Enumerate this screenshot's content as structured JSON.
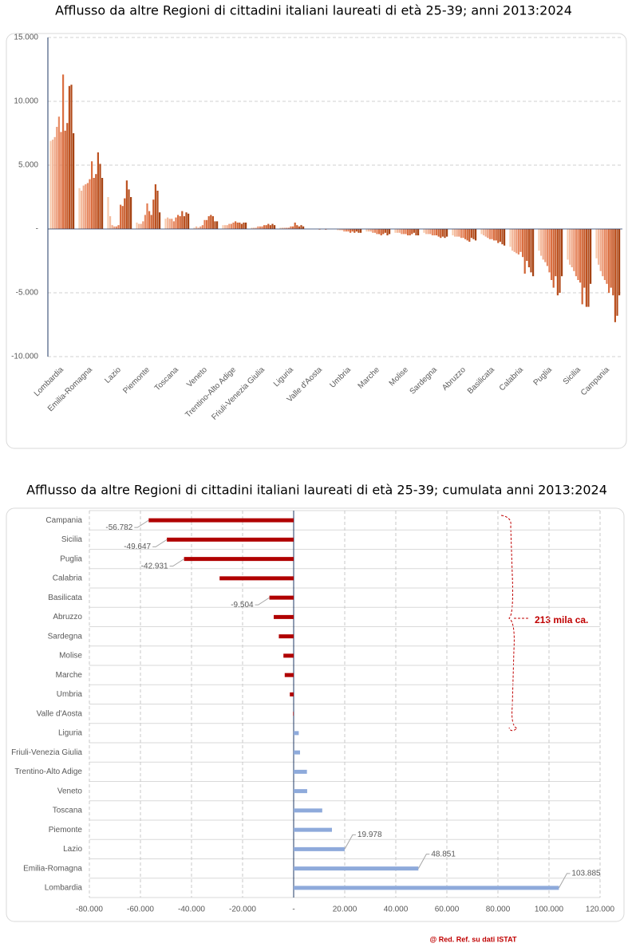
{
  "chart_data": [
    {
      "type": "bar",
      "title": "Afflusso da altre Regioni di cittadini italiani laureati di età 25-39; anni 2013:2024",
      "categories": [
        "Lombardia",
        "Emilia-Romagna",
        "Lazio",
        "Piemonte",
        "Toscana",
        "Veneto",
        "Trentino-Alto Adige",
        "Friuli-Venezia Giulia",
        "Liguria",
        "Valle d'Aosta",
        "Umbria",
        "Marche",
        "Molise",
        "Sardegna",
        "Abruzzo",
        "Basilicata",
        "Calabria",
        "Puglia",
        "Sicilia",
        "Campania"
      ],
      "series": [
        {
          "color": "#f8cbad",
          "values": [
            6900,
            3200,
            2500,
            500,
            800,
            100,
            300,
            100,
            100,
            0,
            -100,
            -200,
            -300,
            -300,
            -500,
            -400,
            -1400,
            -1700,
            -2400,
            -2300
          ]
        },
        {
          "color": "#f4bb9e",
          "values": [
            7000,
            3000,
            1000,
            400,
            900,
            200,
            300,
            100,
            100,
            0,
            -100,
            -200,
            -300,
            -400,
            -600,
            -500,
            -1700,
            -2100,
            -2800,
            -2800
          ]
        },
        {
          "color": "#f0ab8c",
          "values": [
            7200,
            3400,
            300,
            400,
            800,
            100,
            300,
            100,
            100,
            0,
            -100,
            -200,
            -300,
            -400,
            -600,
            -600,
            -1800,
            -2400,
            -3000,
            -3300
          ]
        },
        {
          "color": "#ec9b78",
          "values": [
            8000,
            3500,
            200,
            600,
            800,
            200,
            400,
            200,
            100,
            0,
            -200,
            -300,
            -400,
            -400,
            -600,
            -700,
            -1900,
            -2600,
            -3300,
            -3700
          ]
        },
        {
          "color": "#e78b64",
          "values": [
            8800,
            3600,
            200,
            1100,
            600,
            300,
            400,
            200,
            100,
            0,
            -200,
            -300,
            -400,
            -500,
            -700,
            -800,
            -2000,
            -2900,
            -3700,
            -4000
          ]
        },
        {
          "color": "#e27b50",
          "values": [
            7600,
            3900,
            300,
            2000,
            900,
            700,
            500,
            200,
            200,
            -50,
            -200,
            -400,
            -400,
            -500,
            -700,
            -800,
            -1800,
            -3400,
            -4000,
            -4300
          ]
        },
        {
          "color": "#da6e40",
          "values": [
            12100,
            5300,
            1900,
            1400,
            1100,
            700,
            600,
            300,
            200,
            0,
            -300,
            -400,
            -500,
            -500,
            -800,
            -900,
            -2200,
            -4000,
            -4200,
            -5000
          ]
        },
        {
          "color": "#d06434",
          "values": [
            7700,
            4000,
            1800,
            1100,
            1000,
            1000,
            500,
            300,
            500,
            0,
            -200,
            -500,
            -500,
            -600,
            -900,
            -900,
            -3500,
            -4600,
            -5900,
            -4600
          ]
        },
        {
          "color": "#c65a2a",
          "values": [
            8300,
            4300,
            2400,
            2300,
            1400,
            1100,
            500,
            400,
            300,
            -50,
            -300,
            -400,
            -400,
            -700,
            -1000,
            -1100,
            -2500,
            -3700,
            -4600,
            -5200
          ]
        },
        {
          "color": "#bc5221",
          "values": [
            11200,
            6000,
            3800,
            3500,
            1000,
            1000,
            400,
            300,
            200,
            0,
            -200,
            -300,
            -300,
            -600,
            -700,
            -1000,
            -3000,
            -5200,
            -6100,
            -7300
          ]
        },
        {
          "color": "#b14a19",
          "values": [
            11300,
            5100,
            3100,
            3000,
            1300,
            600,
            500,
            400,
            300,
            0,
            -300,
            -500,
            -500,
            -700,
            -800,
            -1200,
            -3400,
            -5000,
            -6100,
            -6800
          ]
        },
        {
          "color": "#a64313",
          "values": [
            7500,
            4000,
            2500,
            1300,
            1200,
            600,
            500,
            300,
            200,
            0,
            -300,
            -400,
            -500,
            -600,
            -900,
            -1300,
            -3700,
            -3700,
            -4300,
            -5200
          ]
        }
      ],
      "ylim": [
        -10000,
        15000
      ],
      "yticks": [
        {
          "value": -10000,
          "label": "-10.000"
        },
        {
          "value": -5000,
          "label": "-5.000"
        },
        {
          "value": 0,
          "label": "-"
        },
        {
          "value": 5000,
          "label": "5.000"
        },
        {
          "value": 10000,
          "label": "10.000"
        },
        {
          "value": 15000,
          "label": "15.000"
        }
      ],
      "grid": true
    },
    {
      "type": "hbar",
      "title": "Afflusso da altre Regioni di cittadini italiani laureati di età 25-39; cumulata anni 2013:2024",
      "categories": [
        "Campania",
        "Sicilia",
        "Puglia",
        "Calabria",
        "Basilicata",
        "Abruzzo",
        "Sardegna",
        "Molise",
        "Marche",
        "Umbria",
        "Valle d'Aosta",
        "Liguria",
        "Friuli-Venezia Giulia",
        "Trentino-Alto Adige",
        "Veneto",
        "Toscana",
        "Piemonte",
        "Lazio",
        "Emilia-Romagna",
        "Lombardia"
      ],
      "values": [
        -56782,
        -49647,
        -42931,
        -29000,
        -9504,
        -7800,
        -5800,
        -4000,
        -3500,
        -1500,
        -200,
        2000,
        2500,
        5200,
        5300,
        11200,
        15000,
        19978,
        48851,
        103885
      ],
      "value_labels": [
        "-56.782",
        "-49.647",
        "-42.931",
        null,
        "-9.504",
        null,
        null,
        null,
        null,
        null,
        null,
        null,
        null,
        null,
        null,
        null,
        null,
        "19.978",
        "48.851",
        "103.885"
      ],
      "color_negative": "#b00000",
      "color_positive": "#8eaadb",
      "xlim": [
        -80000,
        120000
      ],
      "xticks": [
        {
          "value": -80000,
          "label": "-80.000"
        },
        {
          "value": -60000,
          "label": "-60.000"
        },
        {
          "value": -40000,
          "label": "-40.000"
        },
        {
          "value": -20000,
          "label": "-20.000"
        },
        {
          "value": 0,
          "label": "-"
        },
        {
          "value": 20000,
          "label": "20.000"
        },
        {
          "value": 40000,
          "label": "40.000"
        },
        {
          "value": 60000,
          "label": "60.000"
        },
        {
          "value": 80000,
          "label": "80.000"
        },
        {
          "value": 100000,
          "label": "100.000"
        },
        {
          "value": 120000,
          "label": "120.000"
        }
      ],
      "grid": true,
      "annotation": "213 mila ca."
    }
  ],
  "source": "@ Red. Ref. su dati ISTAT"
}
